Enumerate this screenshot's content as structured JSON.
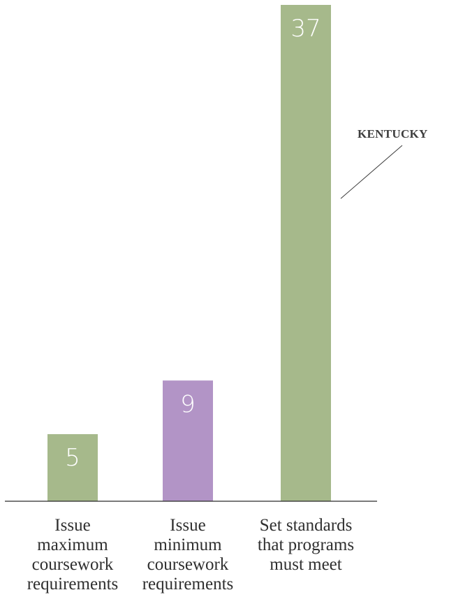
{
  "chart_data": {
    "type": "bar",
    "title": "",
    "xlabel": "",
    "ylabel": "",
    "ylim": [
      0,
      37
    ],
    "grid": false,
    "categories": [
      [
        "Issue",
        "maximum",
        "coursework",
        "requirements"
      ],
      [
        "Issue",
        "minimum",
        "coursework",
        "requirements"
      ],
      [
        "Set standards",
        "that programs",
        "must meet"
      ]
    ],
    "values": [
      5,
      9,
      37
    ],
    "value_labels": [
      "5",
      "9",
      "37"
    ],
    "bar_colors": [
      "#a6b98b",
      "#b294c6",
      "#a6b98b"
    ],
    "annotation": {
      "text": "KENTUCKY",
      "target_category_index": 2
    }
  }
}
